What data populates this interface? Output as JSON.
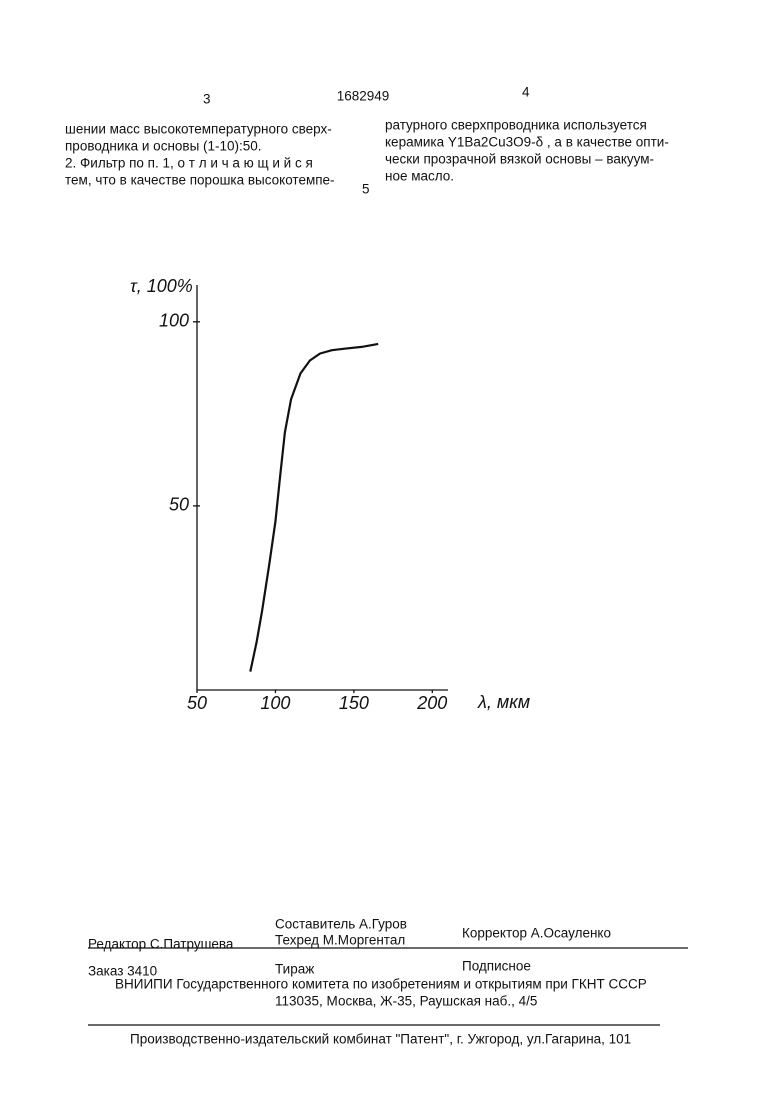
{
  "header": {
    "page_left": "3",
    "patent_number": "1682949",
    "page_right": "4"
  },
  "columns": {
    "left": [
      "шении масс высокотемпературного сверх-",
      "проводника и основы (1-10):50.",
      "2. Фильтр по п. 1, о т л и ч а ю щ и й с я",
      "тем, что в качестве порошка высокотемпе-"
    ],
    "right": [
      "ратурного сверхпроводника используется",
      "керамика Y1Ba2Cu3O9-δ , а в качестве опти-",
      "чески прозрачной вязкой основы – вакуум-",
      "ное масло."
    ],
    "line_number": "5"
  },
  "chart_data": {
    "type": "line",
    "y_label": "τ, 100%",
    "x_label": "λ, мкм",
    "x": [
      84,
      88,
      91.5,
      96,
      100,
      103,
      106,
      110,
      116,
      122,
      128.5,
      136,
      144,
      155,
      165.5
    ],
    "series": [
      {
        "color": "#111111",
        "values": [
          5,
          13,
          21.5,
          34,
          45.7,
          58,
          70,
          79,
          86,
          89.5,
          91.4,
          92.3,
          92.7,
          93.2,
          94
        ]
      }
    ],
    "xlim": [
      50,
      210
    ],
    "ylim": [
      0,
      110
    ],
    "xticks": [
      50,
      100,
      150,
      200
    ],
    "yticks": [
      50,
      100
    ]
  },
  "footer": {
    "compiler": "Составитель А.Гуров",
    "editor": "Редактор С.Патрушева",
    "techeditor": "Техред М.Моргентал",
    "proofreader": "Корректор А.Осауленко",
    "order": "Заказ 3410",
    "circulation": "Тираж",
    "subscription": "Подписное",
    "institute": "ВНИИПИ Государственного комитета по изобретениям и открытиям при ГКНТ СССР",
    "address": "113035, Москва, Ж-35, Раушская наб., 4/5",
    "publisher": "Производственно-издательский комбинат \"Патент\", г. Ужгород, ул.Гагарина, 101"
  }
}
